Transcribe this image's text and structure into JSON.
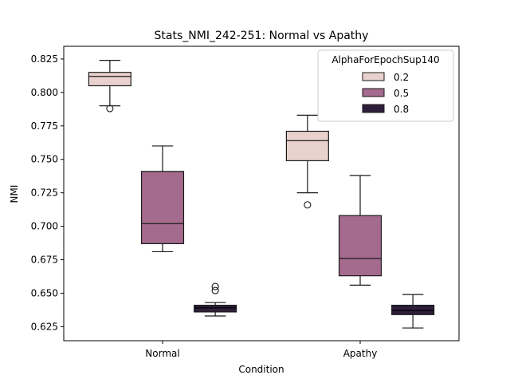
{
  "chart_data": {
    "type": "box",
    "title": "Stats_NMI_242-251: Normal vs Apathy",
    "xlabel": "Condition",
    "ylabel": "NMI",
    "categories": [
      "Normal",
      "Apathy"
    ],
    "ylim": [
      0.6145,
      0.8345
    ],
    "yticks": [
      0.625,
      0.65,
      0.675,
      0.7,
      0.725,
      0.75,
      0.775,
      0.8,
      0.825
    ],
    "ytick_labels": [
      "0.625",
      "0.650",
      "0.675",
      "0.700",
      "0.725",
      "0.750",
      "0.775",
      "0.800",
      "0.825"
    ],
    "grid": false,
    "legend": {
      "title": "AlphaForEpochSup140",
      "position": "top-right"
    },
    "series": [
      {
        "name": "0.2",
        "color": "#e9d2ce",
        "boxes": [
          {
            "category": "Normal",
            "whisker_low": 0.79,
            "q1": 0.805,
            "median": 0.812,
            "q3": 0.815,
            "whisker_high": 0.824,
            "outliers": [
              0.788
            ]
          },
          {
            "category": "Apathy",
            "whisker_low": 0.725,
            "q1": 0.749,
            "median": 0.764,
            "q3": 0.771,
            "whisker_high": 0.783,
            "outliers": [
              0.716
            ]
          }
        ]
      },
      {
        "name": "0.5",
        "color": "#a46b8e",
        "boxes": [
          {
            "category": "Normal",
            "whisker_low": 0.681,
            "q1": 0.687,
            "median": 0.702,
            "q3": 0.741,
            "whisker_high": 0.76,
            "outliers": []
          },
          {
            "category": "Apathy",
            "whisker_low": 0.656,
            "q1": 0.663,
            "median": 0.676,
            "q3": 0.708,
            "whisker_high": 0.738,
            "outliers": []
          }
        ]
      },
      {
        "name": "0.8",
        "color": "#2e1e3b",
        "boxes": [
          {
            "category": "Normal",
            "whisker_low": 0.633,
            "q1": 0.636,
            "median": 0.639,
            "q3": 0.641,
            "whisker_high": 0.643,
            "outliers": [
              0.652,
              0.655
            ]
          },
          {
            "category": "Apathy",
            "whisker_low": 0.624,
            "q1": 0.634,
            "median": 0.637,
            "q3": 0.641,
            "whisker_high": 0.649,
            "outliers": []
          }
        ]
      }
    ]
  }
}
